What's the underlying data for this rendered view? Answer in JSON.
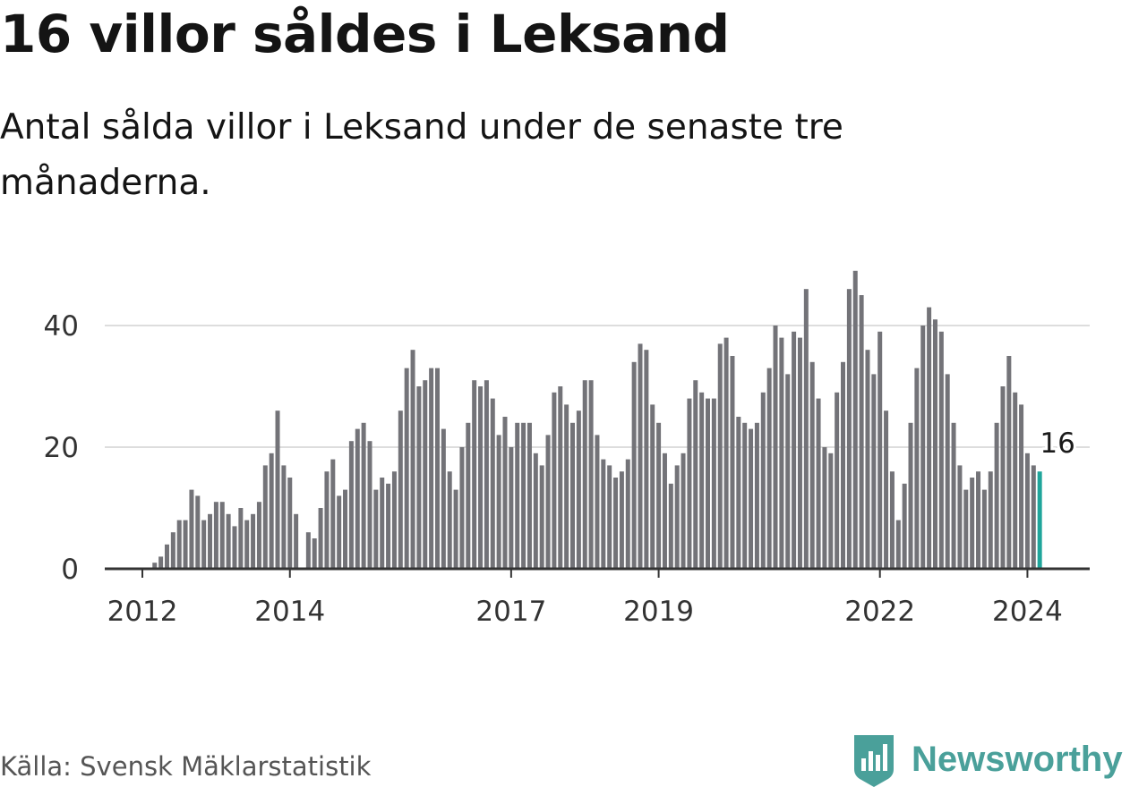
{
  "header": {
    "title": "16 villor såldes i Leksand",
    "subtitle": "Antal sålda villor i Leksand under de senaste tre månaderna."
  },
  "footer": {
    "source": "Källa: Svensk Mäklarstatistik",
    "brand": "Newsworthy",
    "brand_icon": "bar-chart-shield-icon"
  },
  "colors": {
    "bar": "#737378",
    "highlight": "#1fa59b",
    "grid": "#dddddd",
    "axis": "#333333",
    "brand": "#4aa09a"
  },
  "chart_data": {
    "type": "bar",
    "title": "16 villor såldes i Leksand",
    "xlabel": "",
    "ylabel": "",
    "ylim": [
      0,
      50
    ],
    "yticks": [
      0,
      20,
      40
    ],
    "grid": true,
    "start": "2011-08",
    "x_tick_labels": [
      {
        "label": "2012",
        "index": 5
      },
      {
        "label": "2014",
        "index": 29
      },
      {
        "label": "2017",
        "index": 65
      },
      {
        "label": "2019",
        "index": 89
      },
      {
        "label": "2022",
        "index": 125
      },
      {
        "label": "2024",
        "index": 149
      }
    ],
    "values": [
      0,
      0,
      0,
      0,
      0,
      0,
      0,
      1,
      2,
      4,
      6,
      8,
      8,
      13,
      12,
      8,
      9,
      11,
      11,
      9,
      7,
      10,
      8,
      9,
      11,
      17,
      19,
      26,
      17,
      15,
      9,
      0,
      6,
      5,
      10,
      16,
      18,
      12,
      13,
      21,
      23,
      24,
      21,
      13,
      15,
      14,
      16,
      26,
      33,
      36,
      30,
      31,
      33,
      33,
      23,
      16,
      13,
      20,
      24,
      31,
      30,
      31,
      28,
      22,
      25,
      20,
      24,
      24,
      24,
      19,
      17,
      22,
      29,
      30,
      27,
      24,
      26,
      31,
      31,
      22,
      18,
      17,
      15,
      16,
      18,
      34,
      37,
      36,
      27,
      24,
      19,
      14,
      17,
      19,
      28,
      31,
      29,
      28,
      28,
      37,
      38,
      35,
      25,
      24,
      23,
      24,
      29,
      33,
      40,
      38,
      32,
      39,
      38,
      46,
      34,
      28,
      20,
      19,
      29,
      34,
      46,
      49,
      45,
      36,
      32,
      39,
      26,
      16,
      8,
      14,
      24,
      33,
      40,
      43,
      41,
      39,
      32,
      24,
      17,
      13,
      15,
      16,
      13,
      16,
      24,
      30,
      35,
      29,
      27,
      19,
      17,
      16
    ],
    "highlight": {
      "label": "16",
      "value": 16
    }
  }
}
